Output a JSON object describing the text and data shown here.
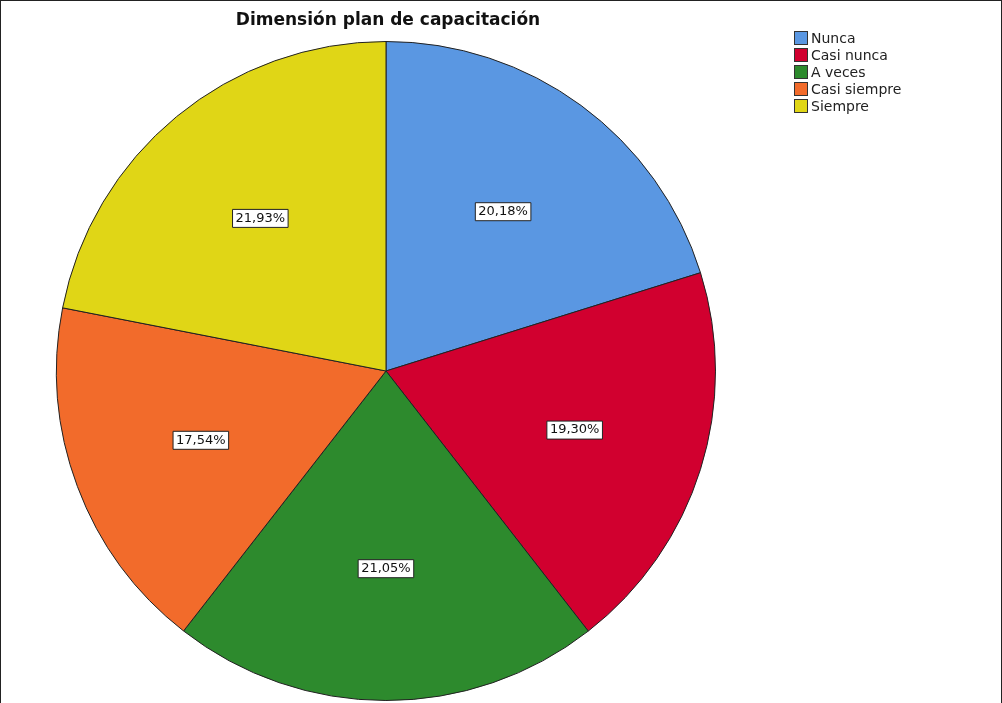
{
  "chart_data": {
    "type": "pie",
    "title": "Dimensión plan de capacitación",
    "categories": [
      "Nunca",
      "Casi nunca",
      "A veces",
      "Casi siempre",
      "Siempre"
    ],
    "values": [
      20.18,
      19.3,
      21.05,
      17.54,
      21.93
    ],
    "value_labels": [
      "20,18%",
      "19,30%",
      "21,05%",
      "17,54%",
      "21,93%"
    ],
    "colors": [
      "#5a97e2",
      "#d1002f",
      "#2d8a2d",
      "#f26b2b",
      "#e0d616"
    ],
    "legend": "top right"
  }
}
